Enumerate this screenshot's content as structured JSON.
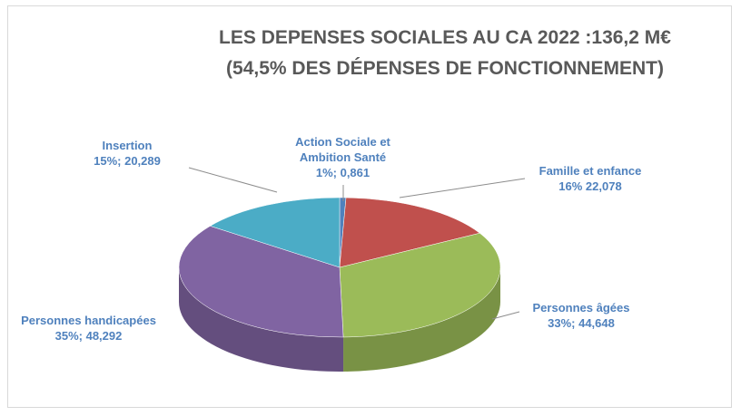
{
  "chart_data": {
    "type": "pie",
    "title": "LES DEPENSES SOCIALES AU CA 2022 :136,2 M€",
    "subtitle": "(54,5% DES DÉPENSES DE FONCTIONNEMENT)",
    "categories": [
      "Action Sociale et Ambition Santé",
      "Famille et enfance",
      "Personnes âgées",
      "Personnes handicapées",
      "Insertion"
    ],
    "values": [
      0.861,
      22.078,
      44.648,
      48.292,
      20.289
    ],
    "value_labels": [
      "1%; 0,861",
      "16% 22,078",
      "33%; 44,648",
      "35%; 48,292",
      "15%; 20,289"
    ],
    "colors": [
      "#4f81bd",
      "#c0504d",
      "#9bbb59",
      "#8064a2",
      "#4bacc6"
    ]
  }
}
